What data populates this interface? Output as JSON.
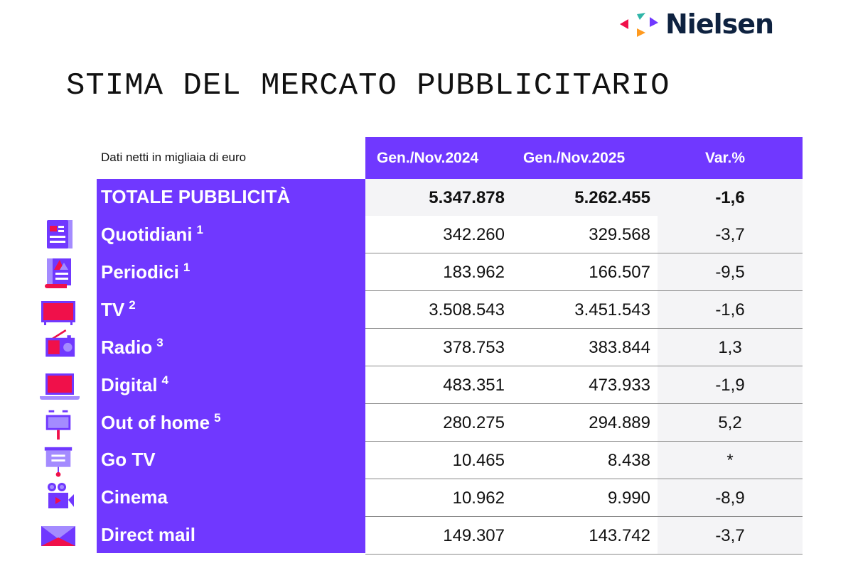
{
  "brand": {
    "name": "Nielsen",
    "colors": {
      "purple": "#7038ff",
      "red": "#f0104a",
      "teal": "#2fb5a8",
      "orange": "#ff9a1f",
      "navy": "#0e2240"
    }
  },
  "title": "STIMA DEL MERCATO PUBBLICITARIO",
  "table": {
    "subtitle": "Dati netti in migliaia di euro",
    "columns": [
      "Gen./Nov.2024",
      "Gen./Nov.2025",
      "Var.%"
    ],
    "total": {
      "label": "TOTALE PUBBLICITÀ",
      "v2024": "5.347.878",
      "v2025": "5.262.455",
      "var": "-1,6"
    },
    "rows": [
      {
        "label": "Quotidiani",
        "note": "1",
        "icon": "newspaper-icon",
        "v2024": "342.260",
        "v2025": "329.568",
        "var": "-3,7"
      },
      {
        "label": "Periodici",
        "note": "1",
        "icon": "magazine-icon",
        "v2024": "183.962",
        "v2025": "166.507",
        "var": "-9,5"
      },
      {
        "label": "TV",
        "note": "2",
        "icon": "tv-icon",
        "v2024": "3.508.543",
        "v2025": "3.451.543",
        "var": "-1,6"
      },
      {
        "label": "Radio",
        "note": "3",
        "icon": "radio-icon",
        "v2024": "378.753",
        "v2025": "383.844",
        "var": "1,3"
      },
      {
        "label": "Digital",
        "note": "4",
        "icon": "laptop-icon",
        "v2024": "483.351",
        "v2025": "473.933",
        "var": "-1,9"
      },
      {
        "label": "Out of home",
        "note": "5",
        "icon": "billboard-icon",
        "v2024": "280.275",
        "v2025": "294.889",
        "var": "5,2"
      },
      {
        "label": "Go TV",
        "note": "",
        "icon": "screen-icon",
        "v2024": "10.465",
        "v2025": "8.438",
        "var": "*"
      },
      {
        "label": "Cinema",
        "note": "",
        "icon": "movie-camera-icon",
        "v2024": "10.962",
        "v2025": "9.990",
        "var": "-8,9"
      },
      {
        "label": "Direct mail",
        "note": "",
        "icon": "envelope-icon",
        "v2024": "149.307",
        "v2025": "143.742",
        "var": "-3,7"
      }
    ]
  }
}
